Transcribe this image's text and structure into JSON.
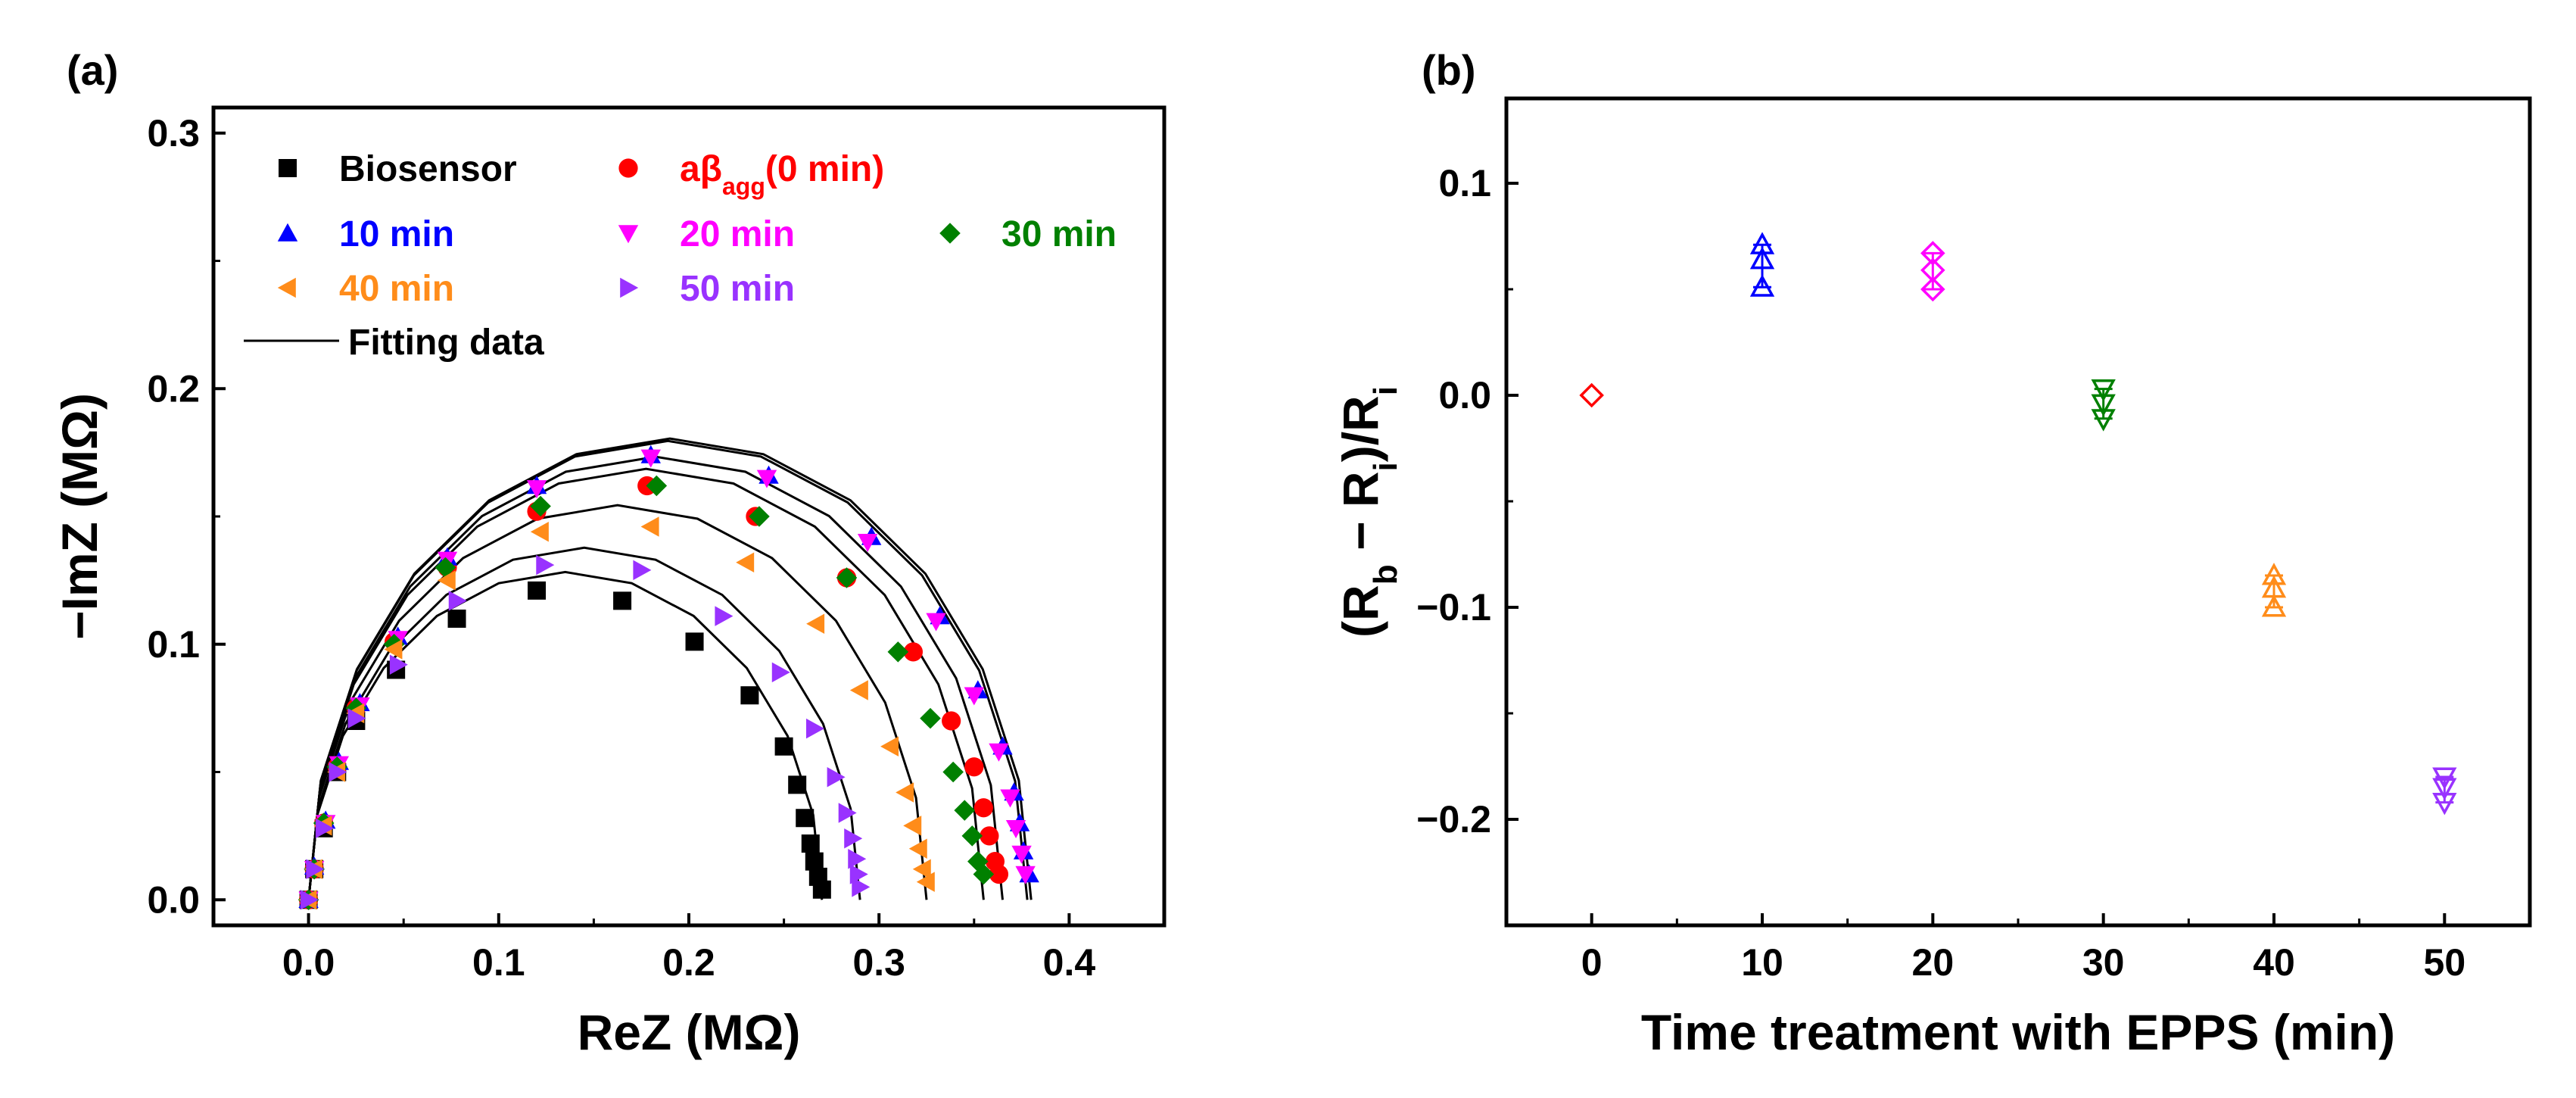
{
  "chart_data": [
    {
      "type": "scatter",
      "panel_label": "(a)",
      "xlabel": "ReZ (MΩ)",
      "ylabel": "−ImZ (MΩ)",
      "xlim": [
        -0.05,
        0.45
      ],
      "ylim": [
        -0.01,
        0.31
      ],
      "xticks": [
        0.0,
        0.1,
        0.2,
        0.3,
        0.4
      ],
      "xtick_labels": [
        "0.0",
        "0.1",
        "0.2",
        "0.3",
        "0.4"
      ],
      "yticks": [
        0.0,
        0.1,
        0.2,
        0.3
      ],
      "ytick_labels": [
        "0.0",
        "0.1",
        "0.2",
        "0.3"
      ],
      "grid": false,
      "legend_position": "top-left",
      "fit_legend_label": "Fitting data",
      "series": [
        {
          "name": "Biosensor",
          "label_base": "Biosensor",
          "label_sub": "",
          "label_suffix": "",
          "marker": "square",
          "color": "#000000",
          "R": 0.27,
          "x": [
            0.0,
            0.003,
            0.008,
            0.015,
            0.025,
            0.046,
            0.078,
            0.12,
            0.165,
            0.203,
            0.232,
            0.25,
            0.257,
            0.261,
            0.264,
            0.266,
            0.268,
            0.27
          ],
          "y": [
            0.0,
            0.012,
            0.028,
            0.05,
            0.07,
            0.09,
            0.11,
            0.121,
            0.117,
            0.101,
            0.08,
            0.06,
            0.045,
            0.032,
            0.022,
            0.015,
            0.009,
            0.004
          ]
        },
        {
          "name": "aβagg(0 min)",
          "label_base": "aβ",
          "label_sub": "agg",
          "label_suffix": "(0 min)",
          "marker": "circle",
          "color": "#ff0000",
          "R": 0.365,
          "x": [
            0.0,
            0.003,
            0.008,
            0.015,
            0.025,
            0.045,
            0.073,
            0.12,
            0.178,
            0.235,
            0.283,
            0.318,
            0.338,
            0.35,
            0.355,
            0.358,
            0.361,
            0.363
          ],
          "y": [
            0.0,
            0.012,
            0.03,
            0.052,
            0.075,
            0.101,
            0.13,
            0.152,
            0.162,
            0.15,
            0.126,
            0.097,
            0.07,
            0.052,
            0.036,
            0.025,
            0.015,
            0.01
          ]
        },
        {
          "name": "10 min",
          "label_base": "10 min",
          "label_sub": "",
          "label_suffix": "",
          "marker": "triangle-up",
          "color": "#0000ff",
          "R": 0.38,
          "x": [
            0.0,
            0.003,
            0.009,
            0.016,
            0.027,
            0.047,
            0.073,
            0.12,
            0.18,
            0.242,
            0.296,
            0.332,
            0.352,
            0.365,
            0.371,
            0.374,
            0.376,
            0.379
          ],
          "y": [
            0.0,
            0.013,
            0.031,
            0.054,
            0.077,
            0.103,
            0.134,
            0.162,
            0.174,
            0.166,
            0.142,
            0.111,
            0.082,
            0.06,
            0.042,
            0.03,
            0.019,
            0.01
          ]
        },
        {
          "name": "20 min",
          "label_base": "20 min",
          "label_sub": "",
          "label_suffix": "",
          "marker": "triangle-down",
          "color": "#ff00ff",
          "R": 0.378,
          "x": [
            0.0,
            0.003,
            0.009,
            0.016,
            0.027,
            0.047,
            0.073,
            0.12,
            0.18,
            0.241,
            0.294,
            0.33,
            0.35,
            0.363,
            0.369,
            0.372,
            0.375,
            0.377
          ],
          "y": [
            0.0,
            0.012,
            0.03,
            0.053,
            0.076,
            0.102,
            0.133,
            0.161,
            0.173,
            0.165,
            0.14,
            0.109,
            0.08,
            0.058,
            0.04,
            0.028,
            0.018,
            0.01
          ]
        },
        {
          "name": "30 min",
          "label_base": "30 min",
          "label_sub": "",
          "label_suffix": "",
          "marker": "diamond",
          "color": "#008000",
          "R": 0.355,
          "x": [
            0.0,
            0.003,
            0.008,
            0.015,
            0.025,
            0.045,
            0.072,
            0.122,
            0.183,
            0.237,
            0.283,
            0.31,
            0.327,
            0.339,
            0.345,
            0.349,
            0.352,
            0.355
          ],
          "y": [
            0.0,
            0.012,
            0.03,
            0.052,
            0.075,
            0.1,
            0.13,
            0.154,
            0.162,
            0.15,
            0.126,
            0.097,
            0.071,
            0.05,
            0.035,
            0.025,
            0.015,
            0.01
          ]
        },
        {
          "name": "40 min",
          "label_base": "40 min",
          "label_sub": "",
          "label_suffix": "",
          "marker": "triangle-left",
          "color": "#ff8c1a",
          "R": 0.325,
          "x": [
            0.0,
            0.003,
            0.008,
            0.015,
            0.025,
            0.045,
            0.073,
            0.122,
            0.18,
            0.23,
            0.267,
            0.29,
            0.306,
            0.314,
            0.318,
            0.321,
            0.323,
            0.325
          ],
          "y": [
            0.0,
            0.012,
            0.029,
            0.05,
            0.073,
            0.098,
            0.125,
            0.144,
            0.146,
            0.132,
            0.108,
            0.082,
            0.06,
            0.042,
            0.029,
            0.02,
            0.012,
            0.007
          ]
        },
        {
          "name": "50 min",
          "label_base": "50 min",
          "label_sub": "",
          "label_suffix": "",
          "marker": "triangle-right",
          "color": "#9932ff",
          "R": 0.29,
          "x": [
            0.0,
            0.003,
            0.008,
            0.015,
            0.025,
            0.047,
            0.078,
            0.124,
            0.175,
            0.218,
            0.248,
            0.266,
            0.277,
            0.283,
            0.286,
            0.288,
            0.289,
            0.29
          ],
          "y": [
            0.0,
            0.012,
            0.028,
            0.05,
            0.071,
            0.092,
            0.117,
            0.131,
            0.129,
            0.111,
            0.089,
            0.067,
            0.048,
            0.034,
            0.024,
            0.016,
            0.01,
            0.005
          ]
        }
      ]
    },
    {
      "type": "scatter",
      "panel_label": "(b)",
      "xlabel": "Time treatment with EPPS (min)",
      "ylabel_parts": {
        "open": "(R",
        "sub_b": "b",
        "mid": " − R",
        "sub_i1": "i",
        "close": ")/R",
        "sub_i2": "i"
      },
      "xlim": [
        -5,
        55
      ],
      "ylim": [
        -0.25,
        0.14
      ],
      "xticks": [
        0,
        10,
        20,
        30,
        40,
        50
      ],
      "xtick_labels": [
        "0",
        "10",
        "20",
        "30",
        "40",
        "50"
      ],
      "yticks": [
        0.1,
        0.0,
        -0.1,
        -0.2
      ],
      "ytick_labels": [
        "0.1",
        "0.0",
        "−0.1",
        "−0.2"
      ],
      "grid": false,
      "points": [
        {
          "x": 0,
          "values": [
            0.0
          ],
          "marker": "open-diamond",
          "color": "#ff0000"
        },
        {
          "x": 10,
          "values": [
            0.071,
            0.064,
            0.051
          ],
          "marker": "open-triangle-up",
          "color": "#0000ff"
        },
        {
          "x": 20,
          "values": [
            0.067,
            0.059,
            0.05
          ],
          "marker": "open-diamond",
          "color": "#ff00ff"
        },
        {
          "x": 30,
          "values": [
            0.003,
            -0.004,
            -0.011
          ],
          "marker": "open-triangle-down",
          "color": "#008000"
        },
        {
          "x": 40,
          "values": [
            -0.085,
            -0.091,
            -0.1
          ],
          "marker": "open-triangle-up",
          "color": "#ff8c1a"
        },
        {
          "x": 50,
          "values": [
            -0.18,
            -0.185,
            -0.192
          ],
          "marker": "open-triangle-down",
          "color": "#9932ff"
        }
      ]
    }
  ]
}
